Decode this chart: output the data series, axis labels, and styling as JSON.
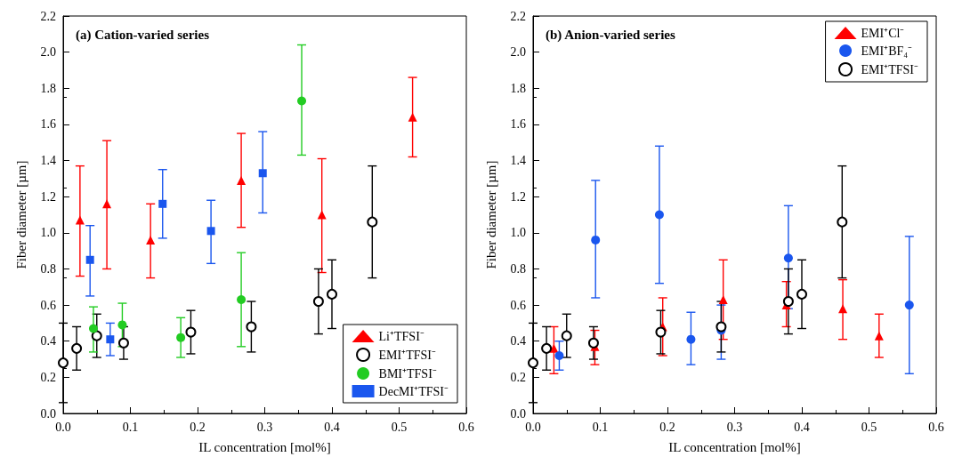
{
  "chart_data": [
    {
      "type": "scatter",
      "title": "(a) Cation-varied series",
      "xlabel": "IL concentration [mol%]",
      "ylabel": "Fiber diameter [µm]",
      "xlim": [
        0,
        0.6
      ],
      "xticks": [
        {
          "value": 0,
          "label": "0.0"
        },
        0.1,
        0.2,
        0.3,
        0.4,
        0.5,
        0.6
      ],
      "ylim": [
        0,
        2.2
      ],
      "yticks": [
        {
          "value": 0,
          "label": "0.0"
        },
        0.2,
        0.4,
        0.6,
        0.8,
        {
          "value": 1,
          "label": "1.0"
        },
        1.2,
        1.4,
        1.6,
        1.8,
        {
          "value": 2,
          "label": "2.0"
        },
        2.2
      ],
      "grid": false,
      "legend": "bottom right",
      "series": [
        {
          "name": "Li⁺TFSI⁻",
          "color": "#ff0000",
          "marker": "triangle",
          "x": [
            0.025,
            0.065,
            0.13,
            0.265,
            0.385,
            0.52
          ],
          "values": [
            1.07,
            1.16,
            0.96,
            1.29,
            1.1,
            1.64
          ],
          "errors": [
            [
              0.76,
              1.37
            ],
            [
              0.8,
              1.51
            ],
            [
              0.75,
              1.16
            ],
            [
              1.03,
              1.55
            ],
            [
              0.78,
              1.41
            ],
            [
              1.42,
              1.86
            ]
          ]
        },
        {
          "name": "EMI⁺TFSI⁻",
          "color": "#000000",
          "marker": "circle",
          "x": [
            0.0,
            0.02,
            0.05,
            0.09,
            0.19,
            0.28,
            0.38,
            0.4,
            0.46
          ],
          "values": [
            0.28,
            0.36,
            0.43,
            0.39,
            0.45,
            0.48,
            0.62,
            0.66,
            1.06
          ],
          "errors": [
            [
              0.06,
              0.5
            ],
            [
              0.24,
              0.48
            ],
            [
              0.31,
              0.55
            ],
            [
              0.3,
              0.48
            ],
            [
              0.33,
              0.57
            ],
            [
              0.34,
              0.62
            ],
            [
              0.44,
              0.8
            ],
            [
              0.47,
              0.85
            ],
            [
              0.75,
              1.37
            ]
          ]
        },
        {
          "name": "BMI⁺TFSI⁻",
          "color": "#22cc22",
          "marker": "circle",
          "x": [
            0.045,
            0.088,
            0.175,
            0.265,
            0.355
          ],
          "values": [
            0.47,
            0.49,
            0.42,
            0.63,
            1.73
          ],
          "errors": [
            [
              0.34,
              0.59
            ],
            [
              0.37,
              0.61
            ],
            [
              0.31,
              0.53
            ],
            [
              0.37,
              0.89
            ],
            [
              1.43,
              2.04
            ]
          ]
        },
        {
          "name": "DecMI⁺TFSI⁻",
          "color": "#1a56ee",
          "marker": "square",
          "x": [
            0.04,
            0.07,
            0.148,
            0.22,
            0.297
          ],
          "values": [
            0.85,
            0.41,
            1.16,
            1.01,
            1.33
          ],
          "errors": [
            [
              0.65,
              1.04
            ],
            [
              0.32,
              0.5
            ],
            [
              0.97,
              1.35
            ],
            [
              0.83,
              1.18
            ],
            [
              1.11,
              1.56
            ]
          ]
        }
      ]
    },
    {
      "type": "scatter",
      "title": "(b) Anion-varied series",
      "xlabel": "IL concentration [mol%]",
      "ylabel": "Fiber diameter [µm]",
      "xlim": [
        0,
        0.6
      ],
      "xticks": [
        {
          "value": 0,
          "label": "0.0"
        },
        0.1,
        0.2,
        0.3,
        0.4,
        0.5,
        0.6
      ],
      "ylim": [
        0,
        2.2
      ],
      "yticks": [
        {
          "value": 0,
          "label": "0.0"
        },
        0.2,
        0.4,
        0.6,
        0.8,
        {
          "value": 1,
          "label": "1.0"
        },
        1.2,
        1.4,
        1.6,
        1.8,
        {
          "value": 2,
          "label": "2.0"
        },
        2.2
      ],
      "grid": false,
      "legend": "top right",
      "series": [
        {
          "name": "EMI⁺Cl⁻",
          "color": "#ff0000",
          "marker": "triangle",
          "x": [
            0.031,
            0.092,
            0.193,
            0.283,
            0.377,
            0.461,
            0.515
          ],
          "values": [
            0.36,
            0.37,
            0.48,
            0.63,
            0.6,
            0.58,
            0.43
          ],
          "errors": [
            [
              0.22,
              0.48
            ],
            [
              0.27,
              0.46
            ],
            [
              0.32,
              0.64
            ],
            [
              0.41,
              0.85
            ],
            [
              0.48,
              0.73
            ],
            [
              0.41,
              0.74
            ],
            [
              0.31,
              0.55
            ]
          ]
        },
        {
          "name": "EMI⁺BF₄⁻",
          "color": "#1a56ee",
          "marker": "circle",
          "x": [
            0.039,
            0.093,
            0.188,
            0.235,
            0.28,
            0.38,
            0.56
          ],
          "values": [
            0.32,
            0.96,
            1.1,
            0.41,
            0.46,
            0.86,
            0.6
          ],
          "errors": [
            [
              0.24,
              0.4
            ],
            [
              0.64,
              1.29
            ],
            [
              0.72,
              1.48
            ],
            [
              0.27,
              0.56
            ],
            [
              0.3,
              0.6
            ],
            [
              0.58,
              1.15
            ],
            [
              0.22,
              0.98
            ]
          ]
        },
        {
          "name": "EMI⁺TFSI⁻",
          "color": "#000000",
          "marker": "circle",
          "x": [
            0.0,
            0.02,
            0.05,
            0.09,
            0.19,
            0.28,
            0.38,
            0.4,
            0.46
          ],
          "values": [
            0.28,
            0.36,
            0.43,
            0.39,
            0.45,
            0.48,
            0.62,
            0.66,
            1.06
          ],
          "errors": [
            [
              0.06,
              0.5
            ],
            [
              0.24,
              0.48
            ],
            [
              0.31,
              0.55
            ],
            [
              0.3,
              0.48
            ],
            [
              0.33,
              0.57
            ],
            [
              0.34,
              0.62
            ],
            [
              0.44,
              0.8
            ],
            [
              0.47,
              0.85
            ],
            [
              0.75,
              1.37
            ]
          ]
        }
      ]
    }
  ]
}
